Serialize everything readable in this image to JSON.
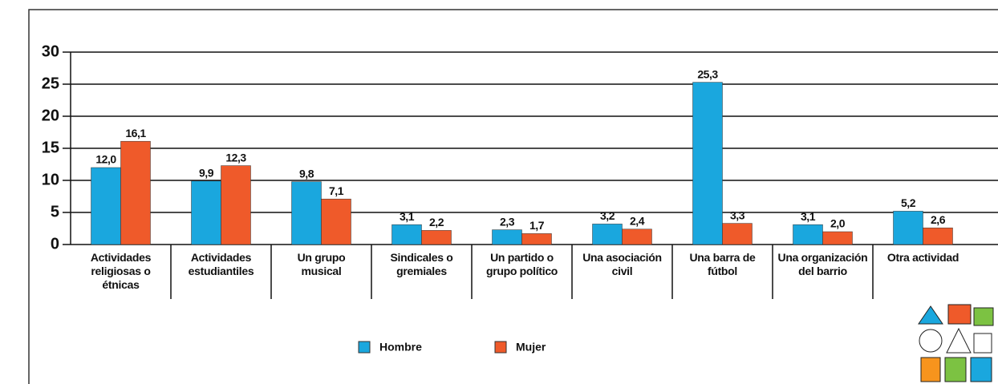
{
  "chart_data": {
    "type": "bar",
    "categories": [
      "Actividades religiosas o étnicas",
      "Actividades estudiantiles",
      "Un grupo musical",
      "Sindicales o gremiales",
      "Un partido o grupo político",
      "Una asociación civil",
      "Una barra de fútbol",
      "Una organización del barrio",
      "Otra actividad"
    ],
    "series": [
      {
        "name": "Hombre",
        "color": "#1aa7de",
        "values": [
          12.0,
          9.9,
          9.8,
          3.1,
          2.3,
          3.2,
          25.3,
          3.1,
          5.2
        ],
        "value_labels": [
          "12,0",
          "9,9",
          "9,8",
          "3,1",
          "2,3",
          "3,2",
          "25,3",
          "3,1",
          "5,2"
        ]
      },
      {
        "name": "Mujer",
        "color": "#ef5a2a",
        "values": [
          16.1,
          12.3,
          7.1,
          2.2,
          1.7,
          2.4,
          3.3,
          2.0,
          2.6
        ],
        "value_labels": [
          "16,1",
          "12,3",
          "7,1",
          "2,2",
          "1,7",
          "2,4",
          "3,3",
          "2,0",
          "2,6"
        ]
      }
    ],
    "ylim": [
      0,
      30
    ],
    "yticks": [
      0,
      5,
      10,
      15,
      20,
      25,
      30
    ],
    "grid": true,
    "legend": "bottom"
  }
}
